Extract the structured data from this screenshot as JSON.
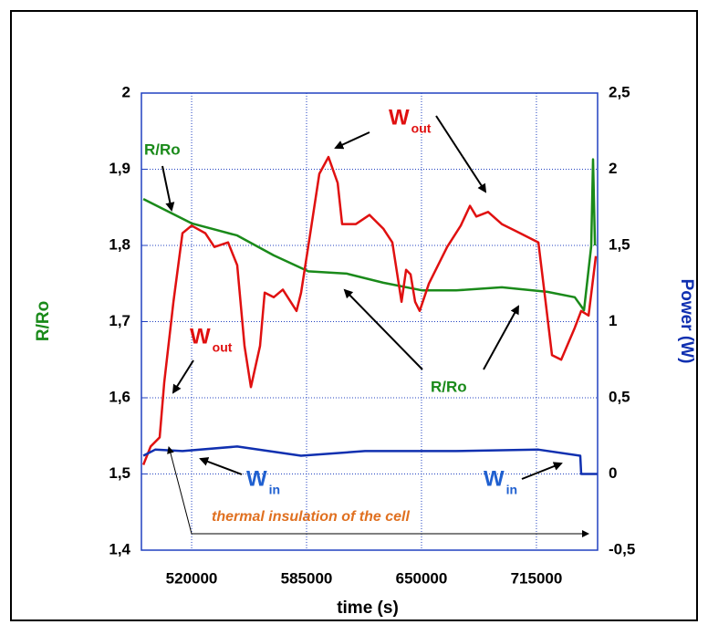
{
  "chart_data": {
    "type": "line",
    "xlabel": "time (s)",
    "ylabel": "R/Ro",
    "y2label": "Power (W)",
    "xlim": [
      491600,
      749600
    ],
    "xticks": [
      520000,
      585000,
      650000,
      715000
    ],
    "ylim": [
      1.4,
      2
    ],
    "yticks": [
      {
        "value": 1.4,
        "label": "1,4"
      },
      {
        "value": 1.5,
        "label": "1,5"
      },
      {
        "value": 1.6,
        "label": "1,6"
      },
      {
        "value": 1.7,
        "label": "1,7"
      },
      {
        "value": 1.8,
        "label": "1,8"
      },
      {
        "value": 1.9,
        "label": "1,9"
      },
      {
        "value": 2,
        "label": "2"
      }
    ],
    "y2lim": [
      -0.5,
      2.5
    ],
    "y2ticks": [
      {
        "value": -0.5,
        "label": "-0,5"
      },
      0,
      {
        "value": 0.5,
        "label": "0,5"
      },
      1,
      {
        "value": 1.5,
        "label": "1,5"
      },
      2,
      {
        "value": 2.5,
        "label": "2,5"
      }
    ],
    "grid": true,
    "series": [
      {
        "color": "#1a8a1a",
        "axis": "y",
        "x": [
          492700,
          520000,
          545800,
          566400,
          586000,
          607700,
          628400,
          650500,
          669600,
          695400,
          721200,
          736700,
          741900,
          746000,
          747000,
          748100
        ],
        "values": [
          1.861,
          1.829,
          1.813,
          1.787,
          1.766,
          1.763,
          1.751,
          1.741,
          1.741,
          1.745,
          1.739,
          1.732,
          1.715,
          1.799,
          1.913,
          1.8
        ]
      },
      {
        "color": "#e01010",
        "axis": "y2",
        "x": [
          492700,
          496800,
          501900,
          504500,
          509700,
          514800,
          520000,
          527700,
          532900,
          540600,
          545800,
          549900,
          553500,
          558700,
          561300,
          566400,
          571600,
          579300,
          581900,
          587100,
          592200,
          597400,
          602600,
          605100,
          612900,
          620600,
          628400,
          633500,
          638700,
          641300,
          643800,
          646400,
          649000,
          654200,
          664500,
          672200,
          677400,
          681000,
          687700,
          695400,
          705800,
          716100,
          720200,
          723800,
          729000,
          736700,
          740300,
          744500,
          748600
        ],
        "values": [
          0.06,
          0.18,
          0.24,
          0.6,
          1.13,
          1.58,
          1.63,
          1.58,
          1.49,
          1.52,
          1.37,
          0.84,
          0.57,
          0.84,
          1.19,
          1.16,
          1.21,
          1.07,
          1.19,
          1.58,
          1.97,
          2.08,
          1.91,
          1.64,
          1.64,
          1.7,
          1.61,
          1.52,
          1.13,
          1.34,
          1.31,
          1.13,
          1.07,
          1.25,
          1.49,
          1.63,
          1.76,
          1.69,
          1.72,
          1.64,
          1.58,
          1.52,
          1.13,
          0.78,
          0.75,
          0.96,
          1.07,
          1.04,
          1.43
        ]
      },
      {
        "color": "#1030b0",
        "axis": "y2",
        "x": [
          492700,
          499400,
          514800,
          545800,
          581900,
          618000,
          669600,
          716100,
          739800,
          740300,
          749600
        ],
        "values": [
          0.12,
          0.16,
          0.15,
          0.18,
          0.12,
          0.15,
          0.15,
          0.16,
          0.12,
          0,
          0
        ]
      }
    ],
    "annotations": [
      {
        "text": "R/Ro"
      },
      {
        "text": "W",
        "sub": "out"
      },
      {
        "text": "W",
        "sub": "out"
      },
      {
        "text": "R/Ro"
      },
      {
        "text": "W",
        "sub": "in"
      },
      {
        "text": "W",
        "sub": "in"
      },
      {
        "text": "thermal insulation of the cell"
      }
    ]
  }
}
